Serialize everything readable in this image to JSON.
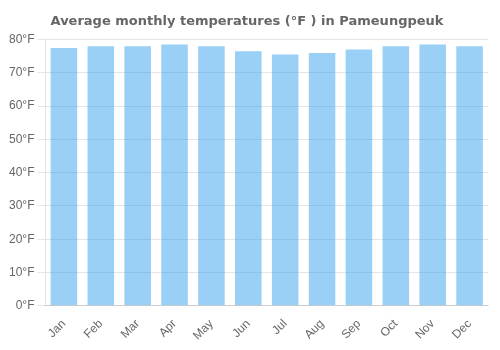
{
  "chart_data": {
    "type": "bar",
    "title": "Average monthly temperatures (°F ) in Pameungpeuk",
    "categories": [
      "Jan",
      "Feb",
      "Mar",
      "Apr",
      "May",
      "Jun",
      "Jul",
      "Aug",
      "Sep",
      "Oct",
      "Nov",
      "Dec"
    ],
    "values": [
      77.5,
      78.0,
      78.0,
      78.5,
      78.0,
      76.5,
      75.5,
      76.0,
      77.0,
      78.0,
      78.5,
      78.0
    ],
    "ylim": [
      0,
      80
    ],
    "yticks": [
      {
        "value": 0,
        "label": "0°F"
      },
      {
        "value": 10,
        "label": "10°F"
      },
      {
        "value": 20,
        "label": "20°F"
      },
      {
        "value": 30,
        "label": "30°F"
      },
      {
        "value": 40,
        "label": "40°F"
      },
      {
        "value": 50,
        "label": "50°F"
      },
      {
        "value": 60,
        "label": "60°F"
      },
      {
        "value": 70,
        "label": "70°F"
      },
      {
        "value": 80,
        "label": "80°F"
      }
    ],
    "grid": true
  }
}
